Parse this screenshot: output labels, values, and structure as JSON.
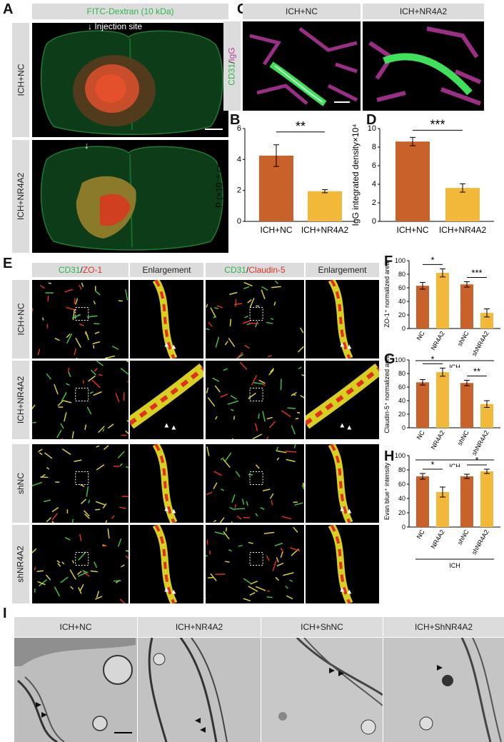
{
  "panels": {
    "A": {
      "letter": "A",
      "title": "FITC-Dextran (10 kDa)",
      "injection_label": "Injection site",
      "rows": [
        "ICH+NC",
        "ICH+NR4A2"
      ]
    },
    "C": {
      "letter": "C",
      "cols": [
        "ICH+NC",
        "ICH+NR4A2"
      ],
      "side_label_a": "CD31",
      "side_label_sep": "/",
      "side_label_b": "IgG"
    },
    "E": {
      "letter": "E",
      "col1_a": "CD31",
      "col1_sep": "/",
      "col1_b": "ZO-1",
      "col2": "Enlargement",
      "col3_a": "CD31",
      "col3_sep": "/",
      "col3_b": "Claudin-5",
      "col4": "Enlargement",
      "rows": [
        "ICH+NC",
        "ICH+NR4A2",
        "shNC",
        "shNR4A2"
      ]
    },
    "I": {
      "letter": "I",
      "cols": [
        "ICH+NC",
        "ICH+NR4A2",
        "ICH+ShNC",
        "ICH+ShNR4A2"
      ]
    }
  },
  "chart_data": [
    {
      "panel": "B",
      "type": "bar",
      "categories": [
        "ICH+NC",
        "ICH+NR4A2"
      ],
      "values": [
        4.25,
        1.95
      ],
      "errors": [
        0.7,
        0.1
      ],
      "ylabel": "P (×10⁻⁶ cm/sec)",
      "ylim": [
        0,
        6
      ],
      "yticks": [
        "0",
        "2",
        "4",
        "6"
      ],
      "significance": "**",
      "colors": [
        "#c8612a",
        "#f2b83a"
      ]
    },
    {
      "panel": "D",
      "type": "bar",
      "categories": [
        "ICH+NC",
        "ICH+NR4A2"
      ],
      "values": [
        8.6,
        3.6
      ],
      "errors": [
        0.45,
        0.45
      ],
      "ylabel": "IgG integrated density×10⁴",
      "ylim": [
        0,
        10
      ],
      "yticks": [
        "0",
        "2",
        "4",
        "6",
        "8",
        "10"
      ],
      "significance": "***",
      "colors": [
        "#c8612a",
        "#f2b83a"
      ]
    },
    {
      "panel": "F",
      "type": "bar",
      "categories": [
        "NC",
        "NR4A2",
        "shNC",
        "shNR4A2"
      ],
      "values": [
        63,
        82,
        65,
        23
      ],
      "errors": [
        5,
        6,
        4,
        6
      ],
      "ylabel": "ZO-1⁺ normalized area",
      "ylim": [
        0,
        100
      ],
      "yticks": [
        "0",
        "20",
        "40",
        "60",
        "80",
        "100"
      ],
      "significance": [
        "*",
        "***"
      ],
      "group_label": "ICH",
      "colors": [
        "#c8612a",
        "#f2b83a",
        "#c8612a",
        "#f2b83a"
      ]
    },
    {
      "panel": "G",
      "type": "bar",
      "categories": [
        "NC",
        "NR4A2",
        "shNC",
        "shNR4A2"
      ],
      "values": [
        67,
        82,
        66,
        35
      ],
      "errors": [
        4,
        6,
        4,
        5
      ],
      "ylabel": "Claudin-5⁺ normalized area",
      "ylim": [
        0,
        100
      ],
      "yticks": [
        "0",
        "20",
        "40",
        "60",
        "80",
        "100"
      ],
      "significance": [
        "*",
        "**"
      ],
      "group_label": "ICH",
      "colors": [
        "#c8612a",
        "#f2b83a",
        "#c8612a",
        "#f2b83a"
      ]
    },
    {
      "panel": "H",
      "type": "bar",
      "categories": [
        "NC",
        "NR4A2",
        "shNC",
        "shNR4A2"
      ],
      "values": [
        71,
        49,
        71,
        78
      ],
      "errors": [
        4,
        7,
        3,
        3
      ],
      "ylabel": "Evan blue⁺ intensity",
      "ylim": [
        0,
        100
      ],
      "yticks": [
        "0",
        "20",
        "40",
        "60",
        "80",
        "100"
      ],
      "significance": [
        "*",
        "*"
      ],
      "group_label": "ICH",
      "colors": [
        "#c8612a",
        "#f2b83a",
        "#c8612a",
        "#f2b83a"
      ]
    }
  ]
}
